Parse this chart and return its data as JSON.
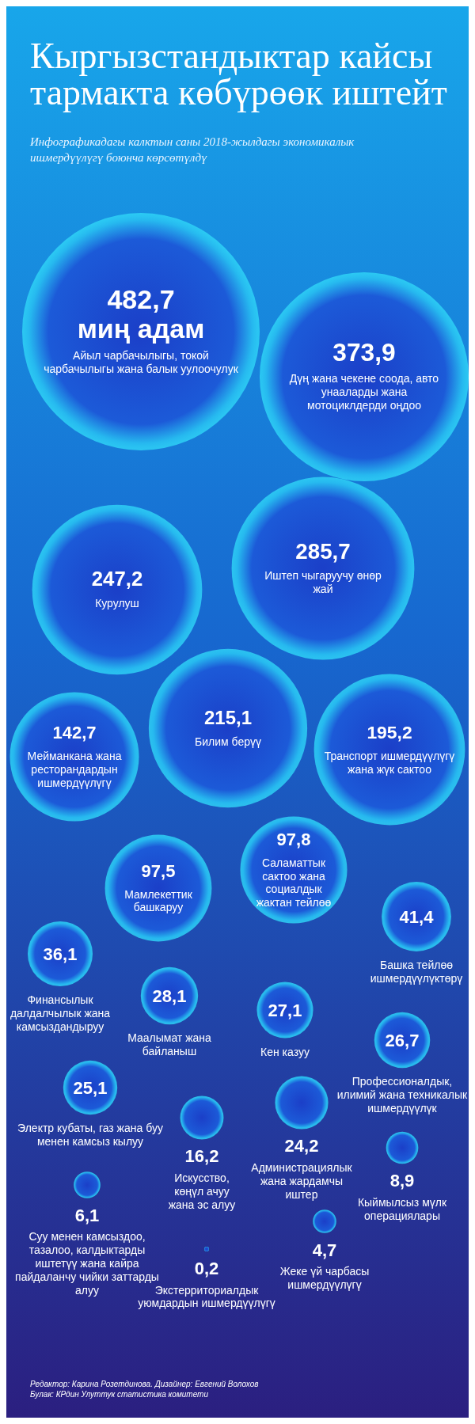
{
  "chart_data": {
    "type": "other",
    "title": "Кыргызстандыктар кайсы тармакта көбүрөөк иштейт",
    "subtitle": "Инфографикадагы калктын саны 2018-жылдагы экономикалык ишмердүүлүгү боюнча көрсөтүлдү",
    "categories": [
      "Айыл чарбачылыгы, токой чарбачылыгы жана балык уулоочулук",
      "Дүң жана чекене соода, авто унааларды жана мотоциклдерди оңдоо",
      "Курулуш",
      "Иштеп чыгаруучу өнөр жай",
      "Билим берүү",
      "Транспорт ишмердүүлүгү жана жүк сактоо",
      "Мейманкана жана ресторандардын ишмердүүлүгү",
      "Мамлекеттик башкаруу",
      "Саламаттык сактоо жана социалдык жактан тейлөө",
      "Башка тейлөө ишмердүүлүктөрү",
      "Финансылык далдалчылык жана камсыздандыруу",
      "Маалымат жана байланыш",
      "Кен казуу",
      "Профессионалдык, илимий жана техникалык ишмердүүлүк",
      "Электр кубаты, газ жана буу менен камсыз кылуу",
      "Искусство, көңүл ачуу жана эс алуу",
      "Администрациялык жана жардамчы иштер",
      "Кыймылсыз мүлк операциялары",
      "Суу менен камсыздоо, тазалоо, калдыктарды иштетүү жана кайра пайдаланчу чийки заттарды алуу",
      "Жеке үй чарбасы ишмердүүлүгү",
      "Экстерриториалдык уюмдардын ишмердүүлүгү"
    ],
    "values": [
      482.7,
      373.9,
      247.2,
      285.7,
      215.1,
      195.2,
      142.7,
      97.5,
      97.8,
      41.4,
      36.1,
      28.1,
      27.1,
      26.7,
      25.1,
      16.2,
      24.2,
      8.9,
      6.1,
      4.7,
      0.2
    ],
    "value_labels": [
      "482,7 миң адам",
      "373,9",
      "247,2",
      "285,7",
      "215,1",
      "195,2",
      "142,7",
      "97,5",
      "97,8",
      "41,4",
      "36,1",
      "28,1",
      "27,1",
      "26,7",
      "25,1",
      "16,2",
      "24,2",
      "8,9",
      "6,1",
      "4,7",
      "0,2"
    ],
    "annotations": [
      "Редактор: Карина Розетдинова. Дизайнер: Евгений Волохов",
      "Булак: КРдин Улуттук статистика комитети"
    ]
  }
}
